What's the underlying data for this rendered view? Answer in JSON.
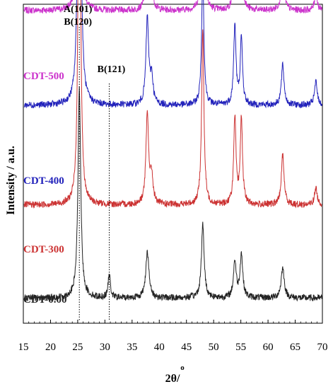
{
  "chart_data": {
    "type": "line",
    "title": "",
    "xlabel": "2θ/",
    "xlabel_superscript": "o",
    "ylabel": "Intensity / a.u.",
    "xlim": [
      15,
      70
    ],
    "x_ticks": [
      "15",
      "20",
      "25",
      "30",
      "35",
      "40",
      "45",
      "50",
      "55",
      "60",
      "65",
      "70"
    ],
    "grid": false,
    "annotations": [
      {
        "lines": [
          "A(101)",
          "B(120)"
        ],
        "x": 25.3
      },
      {
        "lines": [
          "B(121)"
        ],
        "x": 30.8
      }
    ],
    "series": [
      {
        "name": "CDT-500",
        "color": "#cc33cc",
        "baseline": 0.93,
        "peaks": [
          {
            "x": 25.3,
            "height": 0.96,
            "width": 0.25
          },
          {
            "x": 37.8,
            "height": 0.18,
            "width": 0.3
          },
          {
            "x": 38.6,
            "height": 0.07,
            "width": 0.3
          },
          {
            "x": 48.0,
            "height": 0.48,
            "width": 0.25
          },
          {
            "x": 53.9,
            "height": 0.2,
            "width": 0.25
          },
          {
            "x": 55.1,
            "height": 0.22,
            "width": 0.25
          },
          {
            "x": 62.7,
            "height": 0.14,
            "width": 0.3
          },
          {
            "x": 68.8,
            "height": 0.05,
            "width": 0.3
          }
        ]
      },
      {
        "name": "CDT-400",
        "color": "#2222bb",
        "baseline": 0.645,
        "peaks": [
          {
            "x": 25.3,
            "height": 1.6,
            "width": 0.25
          },
          {
            "x": 37.8,
            "height": 0.26,
            "width": 0.3
          },
          {
            "x": 38.6,
            "height": 0.08,
            "width": 0.3
          },
          {
            "x": 48.0,
            "height": 0.39,
            "width": 0.25
          },
          {
            "x": 53.9,
            "height": 0.24,
            "width": 0.25
          },
          {
            "x": 55.1,
            "height": 0.2,
            "width": 0.25
          },
          {
            "x": 62.7,
            "height": 0.12,
            "width": 0.3
          },
          {
            "x": 68.8,
            "height": 0.07,
            "width": 0.3
          }
        ]
      },
      {
        "name": "CDT-300",
        "color": "#cc3333",
        "baseline": 0.345,
        "peaks": [
          {
            "x": 25.3,
            "height": 1.35,
            "width": 0.25
          },
          {
            "x": 37.8,
            "height": 0.27,
            "width": 0.3
          },
          {
            "x": 38.6,
            "height": 0.08,
            "width": 0.3
          },
          {
            "x": 48.0,
            "height": 0.53,
            "width": 0.25
          },
          {
            "x": 53.9,
            "height": 0.26,
            "width": 0.25
          },
          {
            "x": 55.1,
            "height": 0.26,
            "width": 0.25
          },
          {
            "x": 62.7,
            "height": 0.15,
            "width": 0.3
          },
          {
            "x": 68.8,
            "height": 0.05,
            "width": 0.3
          }
        ]
      },
      {
        "name": "CDT-0.00",
        "color": "#222222",
        "baseline": 0.065,
        "peaks": [
          {
            "x": 25.3,
            "height": 0.63,
            "width": 0.3
          },
          {
            "x": 30.8,
            "height": 0.07,
            "width": 0.25
          },
          {
            "x": 37.8,
            "height": 0.14,
            "width": 0.35
          },
          {
            "x": 48.0,
            "height": 0.22,
            "width": 0.3
          },
          {
            "x": 53.9,
            "height": 0.11,
            "width": 0.3
          },
          {
            "x": 55.1,
            "height": 0.13,
            "width": 0.3
          },
          {
            "x": 62.7,
            "height": 0.09,
            "width": 0.35
          }
        ]
      }
    ]
  }
}
